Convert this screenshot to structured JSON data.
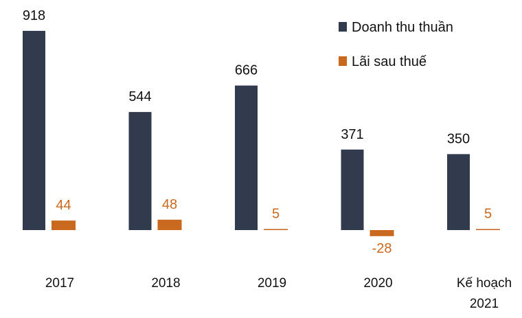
{
  "chart_data": {
    "type": "bar",
    "categories": [
      "2017",
      "2018",
      "2019",
      "2020",
      "Kế hoạch 2021"
    ],
    "series": [
      {
        "name": "Doanh thu thuần",
        "color": "#323a4d",
        "values": [
          918,
          544,
          666,
          371,
          350
        ]
      },
      {
        "name": "Lãi sau thuế",
        "color": "#c9681f",
        "values": [
          44,
          48,
          5,
          -28,
          5
        ]
      }
    ],
    "legend": "top-right"
  }
}
